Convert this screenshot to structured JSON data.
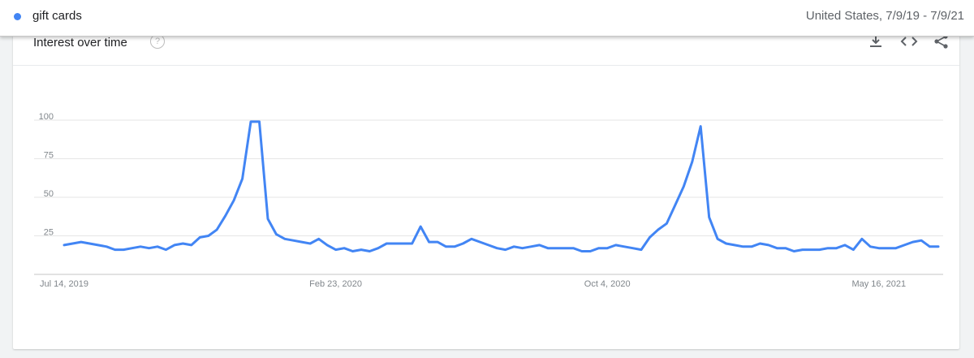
{
  "header": {
    "term": "gift cards",
    "meta": "United States, 7/9/19 - 7/9/21",
    "term_color": "#4285f4"
  },
  "card": {
    "title": "Interest over time",
    "help_icon": "?",
    "icons": [
      "download-icon",
      "embed-code-icon",
      "share-icon"
    ]
  },
  "chart_data": {
    "type": "line",
    "title": "",
    "xlabel": "",
    "ylabel": "",
    "ylim": [
      0,
      100
    ],
    "y_ticks": [
      25,
      50,
      75,
      100
    ],
    "x_tick_labels": [
      "Jul 14, 2019",
      "Feb 23, 2020",
      "Oct 4, 2020",
      "May 16, 2021"
    ],
    "x_tick_indices": [
      0,
      32,
      64,
      96
    ],
    "grid": true,
    "legend": "none",
    "series": [
      {
        "color": "#4285f4",
        "values": [
          19,
          20,
          21,
          20,
          19,
          18,
          16,
          16,
          17,
          18,
          17,
          18,
          16,
          19,
          20,
          19,
          24,
          25,
          29,
          38,
          48,
          62,
          99,
          99,
          36,
          26,
          23,
          22,
          21,
          20,
          23,
          19,
          16,
          17,
          15,
          16,
          15,
          17,
          20,
          20,
          20,
          20,
          31,
          21,
          21,
          18,
          18,
          20,
          23,
          21,
          19,
          17,
          16,
          18,
          17,
          18,
          19,
          17,
          17,
          17,
          17,
          15,
          15,
          17,
          17,
          19,
          18,
          17,
          16,
          24,
          29,
          33,
          45,
          57,
          73,
          96,
          37,
          23,
          20,
          19,
          18,
          18,
          20,
          19,
          17,
          17,
          15,
          16,
          16,
          16,
          17,
          17,
          19,
          16,
          23,
          18,
          17,
          17,
          17,
          19,
          21,
          22,
          18,
          18
        ]
      }
    ]
  }
}
